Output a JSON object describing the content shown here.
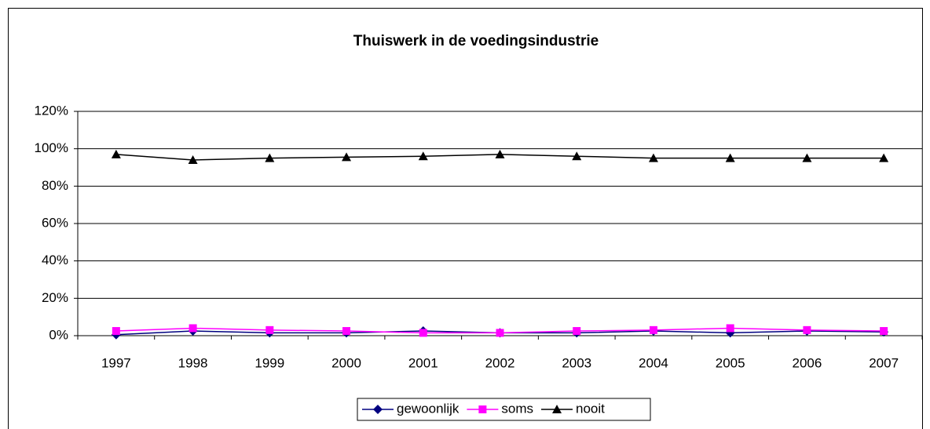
{
  "chart_data": {
    "type": "line",
    "title": "Thuiswerk in de voedingsindustrie",
    "categories": [
      "1997",
      "1998",
      "1999",
      "2000",
      "2001",
      "2002",
      "2003",
      "2004",
      "2005",
      "2006",
      "2007"
    ],
    "series": [
      {
        "name": "gewoonlijk",
        "color": "#000080",
        "marker": "diamond",
        "values": [
          0.5,
          2.5,
          1.5,
          1.5,
          2.5,
          1.5,
          1.5,
          2.5,
          1.5,
          2.5,
          2
        ]
      },
      {
        "name": "soms",
        "color": "#ff00ff",
        "marker": "square",
        "values": [
          2.5,
          4,
          3,
          2.5,
          1.5,
          1.5,
          2.5,
          3,
          4,
          3,
          2.5
        ]
      },
      {
        "name": "nooit",
        "color": "#000000",
        "marker": "triangle",
        "values": [
          97,
          94,
          95,
          95.5,
          96,
          97,
          96,
          95,
          95,
          95,
          95
        ]
      }
    ],
    "ylim": [
      0,
      120
    ],
    "yticks": [
      {
        "value": 0,
        "label": "0%"
      },
      {
        "value": 20,
        "label": "20%"
      },
      {
        "value": 40,
        "label": "40%"
      },
      {
        "value": 60,
        "label": "60%"
      },
      {
        "value": 80,
        "label": "80%"
      },
      {
        "value": 100,
        "label": "100%"
      },
      {
        "value": 120,
        "label": "120%"
      }
    ],
    "grid": true,
    "legend": "bottom"
  }
}
